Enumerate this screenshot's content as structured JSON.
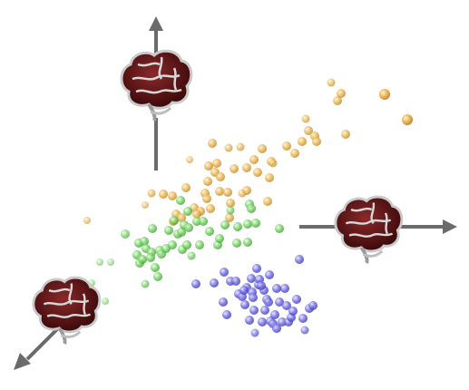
{
  "axes": [
    {
      "id": "vertical",
      "direction": "up"
    },
    {
      "id": "horizontal",
      "direction": "right"
    },
    {
      "id": "diagonal",
      "direction": "down-left"
    }
  ],
  "brain_icons": [
    "brain-icon-top",
    "brain-icon-right",
    "brain-icon-bottom-left"
  ],
  "colors": {
    "axis": "#6b6b6b",
    "cluster_orange": "#e8b04a",
    "cluster_green": "#6fcf5e",
    "cluster_blue": "#5a55d8",
    "brain_dark": "#4a0f10",
    "brain_outline": "#cfcfcf"
  },
  "clusters": [
    {
      "name": "orange",
      "count": 52
    },
    {
      "name": "green",
      "count": 48
    },
    {
      "name": "blue",
      "count": 46
    }
  ]
}
